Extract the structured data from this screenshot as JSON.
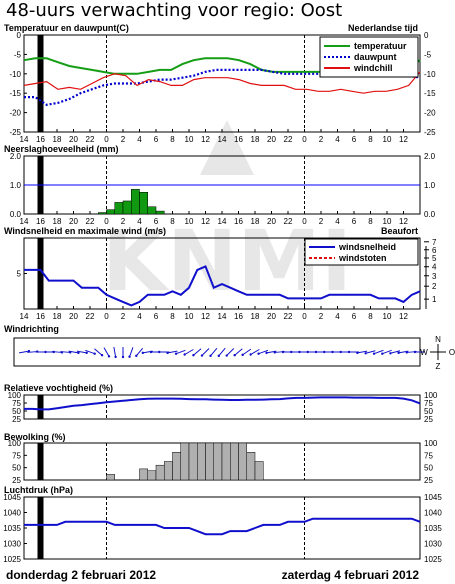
{
  "page": {
    "title": "48-uurs verwachting voor regio: Oost",
    "date_left": "donderdag 2 februari 2012",
    "date_right": "zaterdag 4 februari 2012"
  },
  "colors": {
    "temperature": "#159e15",
    "dewpoint": "#0000cc",
    "windchill": "#e01010",
    "wind": "#1010cc",
    "gust": "#e01010",
    "precip_bar": "#119911",
    "cloud_bar": "#b0b0b0",
    "now_marker": "#000000",
    "ref_line": "#0000ff"
  },
  "chart_data": [
    {
      "id": "temperature",
      "type": "line",
      "title": "Temperatuur en dauwpunt(C)",
      "title_right": "Nederlandse tijd",
      "x_tick_labels": [
        "14",
        "16",
        "18",
        "20",
        "22",
        "0",
        "2",
        "4",
        "6",
        "8",
        "10",
        "12",
        "14",
        "16",
        "18",
        "20",
        "22",
        "0",
        "2",
        "4",
        "6",
        "8",
        "10",
        "12"
      ],
      "ylim": [
        -25,
        0
      ],
      "y_ticks": [
        "0",
        "-5",
        "-10",
        "-15",
        "-20",
        "-25"
      ],
      "series": [
        {
          "name": "temperatuur",
          "style": "solid",
          "values": [
            -6.5,
            -6,
            -6,
            -7,
            -8,
            -8.5,
            -9,
            -9.5,
            -10,
            -10,
            -10,
            -9.5,
            -9,
            -9,
            -7.5,
            -6.5,
            -6,
            -6,
            -6,
            -6.5,
            -7.5,
            -9,
            -9.5,
            -9.5,
            -9.5,
            -9.5,
            -9.5,
            -9.5,
            -9.5,
            -9.5,
            -9.5,
            -9.5,
            -9.5,
            -9.5,
            -8.5,
            -6.5
          ]
        },
        {
          "name": "dauwpunt",
          "style": "dotted",
          "values": [
            -16,
            -16,
            -18,
            -17.5,
            -16.5,
            -15,
            -14,
            -13,
            -12.5,
            -12.5,
            -12.5,
            -12,
            -11.5,
            -11.5,
            -11,
            -10.5,
            -9.5,
            -9,
            -9,
            -9,
            -9,
            -9,
            -9.5,
            -10,
            -10,
            -10,
            -10,
            -10,
            -10,
            -10,
            -10,
            -10,
            -10,
            -10,
            -10.5,
            -11
          ]
        },
        {
          "name": "windchill",
          "style": "solid",
          "values": [
            -13,
            -12.5,
            -12,
            -14,
            -13.5,
            -14,
            -12.5,
            -11,
            -10,
            -10.5,
            -13,
            -11.5,
            -12,
            -13,
            -13,
            -11.5,
            -11,
            -11,
            -11,
            -11.5,
            -12.5,
            -13,
            -13,
            -13,
            -14,
            -14,
            -14.5,
            -14.5,
            -14,
            -14.5,
            -15,
            -14.5,
            -14.5,
            -14,
            -13,
            -9.5
          ]
        }
      ]
    },
    {
      "id": "precipitation",
      "type": "bar",
      "title": "Neerslaghoeveelheid (mm)",
      "x_tick_labels": [
        "14",
        "16",
        "18",
        "20",
        "22",
        "0",
        "2",
        "4",
        "6",
        "8",
        "10",
        "12",
        "14",
        "16",
        "18",
        "20",
        "22",
        "0",
        "2",
        "4",
        "6",
        "8",
        "10",
        "12"
      ],
      "ylim": [
        0,
        2
      ],
      "y_ticks": [
        "2.0",
        "1.0",
        "0.0"
      ],
      "reference_line": 1.0,
      "bars": [
        {
          "h": 9,
          "v": 0.05
        },
        {
          "h": 10,
          "v": 0.15
        },
        {
          "h": 11,
          "v": 0.4
        },
        {
          "h": 12,
          "v": 0.45
        },
        {
          "h": 13,
          "v": 0.85
        },
        {
          "h": 14,
          "v": 0.75
        },
        {
          "h": 15,
          "v": 0.25
        },
        {
          "h": 16,
          "v": 0.1
        }
      ]
    },
    {
      "id": "wind",
      "type": "line",
      "title": "Windsnelheid en maximale wind (m/s)",
      "title_right": "Beaufort",
      "x_tick_labels": [
        "14",
        "16",
        "18",
        "20",
        "22",
        "0",
        "2",
        "4",
        "6",
        "8",
        "10",
        "12",
        "14",
        "16",
        "18",
        "20",
        "22",
        "0",
        "2",
        "4",
        "6",
        "8",
        "10",
        "12"
      ],
      "ylim": [
        0,
        10
      ],
      "y_ticks": [
        "10",
        "5",
        "0"
      ],
      "beaufort_ticks": [
        "7",
        "6",
        "5",
        "4",
        "3",
        "2",
        "1"
      ],
      "series": [
        {
          "name": "windsnelheid",
          "style": "solid",
          "values": [
            5.5,
            5.5,
            5.5,
            4,
            4,
            4,
            4,
            3,
            3,
            3,
            2,
            1.5,
            1,
            0.5,
            1,
            2,
            2,
            2,
            2.5,
            2,
            3,
            5.5,
            6,
            3,
            3.5,
            3,
            2.5,
            2,
            2,
            2,
            2,
            2,
            1.5,
            1.5,
            1.5,
            1.5,
            1.5,
            2,
            2,
            2,
            2,
            2,
            2,
            1.5,
            1.5,
            1.5,
            1,
            2,
            2.5
          ]
        },
        {
          "name": "windstoten",
          "style": "dashed",
          "values": []
        }
      ]
    },
    {
      "id": "wind_direction",
      "type": "scatter",
      "title": "Windrichting",
      "compass": [
        "N",
        "W",
        "O",
        "Z"
      ],
      "directions_deg": [
        80,
        85,
        90,
        90,
        95,
        95,
        100,
        100,
        110,
        130,
        150,
        170,
        180,
        200,
        220,
        260,
        270,
        270,
        260,
        250,
        240,
        230,
        225,
        220,
        220,
        225,
        230,
        235,
        240,
        250,
        260,
        265,
        270,
        270,
        270,
        270,
        270,
        270,
        270,
        270,
        270,
        260,
        255,
        250,
        250,
        255,
        260,
        265,
        270
      ]
    },
    {
      "id": "humidity",
      "type": "line",
      "title": "Relatieve vochtigheid (%)",
      "ylim": [
        0,
        100
      ],
      "y_ticks": [
        "100",
        "75",
        "50",
        "25"
      ],
      "series": [
        {
          "name": "relatieve vochtigheid",
          "style": "solid",
          "values": [
            42,
            42,
            40,
            40,
            45,
            50,
            55,
            58,
            62,
            66,
            70,
            73,
            76,
            79,
            82,
            84,
            85,
            85,
            85,
            84,
            83,
            82,
            82,
            81,
            80,
            79,
            79,
            80,
            80,
            81,
            82,
            83,
            86,
            88,
            88,
            89,
            90,
            90,
            90,
            90,
            89,
            89,
            89,
            88,
            88,
            88,
            85,
            78,
            65
          ]
        }
      ]
    },
    {
      "id": "cloud_cover",
      "type": "bar",
      "title": "Bewolking (%)",
      "ylim": [
        0,
        100
      ],
      "y_ticks": [
        "100",
        "75",
        "50",
        "25"
      ],
      "bars": [
        {
          "h": 0,
          "v": 15
        },
        {
          "h": 4,
          "v": 30
        },
        {
          "h": 5,
          "v": 25
        },
        {
          "h": 6,
          "v": 40
        },
        {
          "h": 7,
          "v": 50
        },
        {
          "h": 8,
          "v": 75
        },
        {
          "h": 9,
          "v": 100
        },
        {
          "h": 10,
          "v": 100
        },
        {
          "h": 11,
          "v": 100
        },
        {
          "h": 12,
          "v": 100
        },
        {
          "h": 13,
          "v": 100
        },
        {
          "h": 14,
          "v": 100
        },
        {
          "h": 15,
          "v": 100
        },
        {
          "h": 16,
          "v": 100
        },
        {
          "h": 17,
          "v": 75
        },
        {
          "h": 18,
          "v": 50
        }
      ]
    },
    {
      "id": "pressure",
      "type": "line",
      "title": "Luchtdruk (hPa)",
      "ylim": [
        1025,
        1045
      ],
      "y_ticks": [
        "1045",
        "1040",
        "1035",
        "1030",
        "1025"
      ],
      "series": [
        {
          "name": "luchtdruk",
          "style": "solid",
          "values": [
            1036,
            1036,
            1036,
            1036,
            1036,
            1037,
            1037,
            1037,
            1037,
            1037,
            1037,
            1036,
            1036,
            1036,
            1036,
            1036,
            1036,
            1035,
            1035,
            1035,
            1035,
            1034,
            1033,
            1033,
            1033,
            1034,
            1034,
            1034,
            1035,
            1036,
            1036,
            1036,
            1037,
            1037,
            1037,
            1038,
            1038,
            1038,
            1038,
            1038,
            1038,
            1038,
            1038,
            1038,
            1038,
            1038,
            1038,
            1038,
            1037
          ]
        }
      ]
    }
  ]
}
